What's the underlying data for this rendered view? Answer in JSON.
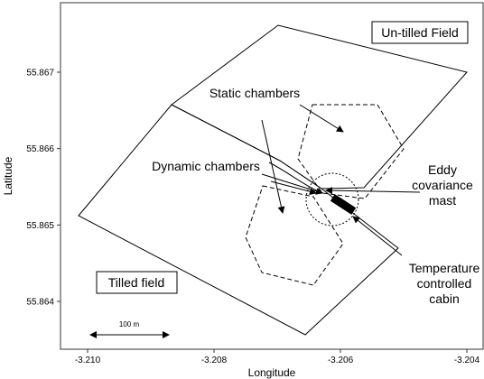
{
  "map": {
    "x_axis": {
      "title": "Longitude",
      "ticks": [
        {
          "value": -3.21,
          "label": "-3.210"
        },
        {
          "value": -3.208,
          "label": "-3.208"
        },
        {
          "value": -3.206,
          "label": "-3.206"
        },
        {
          "value": -3.204,
          "label": "-3.204"
        }
      ]
    },
    "y_axis": {
      "title": "Latitude",
      "ticks": [
        {
          "value": 55.864,
          "label": "55.864"
        },
        {
          "value": 55.865,
          "label": "55.865"
        },
        {
          "value": 55.866,
          "label": "55.866"
        },
        {
          "value": 55.867,
          "label": "55.867"
        }
      ]
    },
    "regions": {
      "untilled": "Un-tilled Field",
      "tilled": "Tilled field"
    },
    "labels": {
      "static_chambers": "Static chambers",
      "dynamic_chambers": "Dynamic chambers",
      "eddy_line1": "Eddy",
      "eddy_line2": "covariance",
      "eddy_line3": "mast",
      "cabin_line1": "Temperature",
      "cabin_line2": "controlled",
      "cabin_line3": "cabin"
    },
    "scale_bar": {
      "label": "100 m"
    },
    "colors": {
      "line": "#000000",
      "background": "#ffffff"
    }
  }
}
